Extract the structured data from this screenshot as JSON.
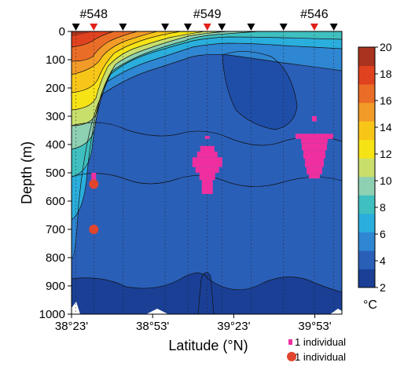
{
  "chart_data": {
    "type": "heatmap",
    "xlabel": "Latitude (°N)",
    "ylabel": "Depth (m)",
    "x_ticks": [
      "38°23'",
      "38°53'",
      "39°23'",
      "39°53'"
    ],
    "x_tick_values": [
      38.383,
      38.883,
      39.383,
      39.883
    ],
    "xlim": [
      38.383,
      40.05
    ],
    "y_ticks": [
      0,
      100,
      200,
      300,
      400,
      500,
      600,
      700,
      800,
      900,
      1000
    ],
    "ylim": [
      0,
      1000
    ],
    "station_labels": [
      {
        "name": "#548",
        "lat": 38.52
      },
      {
        "name": "#549",
        "lat": 39.22
      },
      {
        "name": "#546",
        "lat": 39.88
      }
    ],
    "station_markers": [
      {
        "lat": 38.41,
        "color": "#000000"
      },
      {
        "lat": 38.52,
        "color": "#e0201b"
      },
      {
        "lat": 38.7,
        "color": "#000000"
      },
      {
        "lat": 38.96,
        "color": "#000000"
      },
      {
        "lat": 39.1,
        "color": "#000000"
      },
      {
        "lat": 39.22,
        "color": "#e0201b"
      },
      {
        "lat": 39.31,
        "color": "#000000"
      },
      {
        "lat": 39.49,
        "color": "#000000"
      },
      {
        "lat": 39.69,
        "color": "#000000"
      },
      {
        "lat": 39.88,
        "color": "#e0201b"
      },
      {
        "lat": 40.0,
        "color": "#000000"
      }
    ],
    "colorbar": {
      "unit": "°C",
      "ticks": [
        2,
        4,
        6,
        8,
        10,
        12,
        14,
        16,
        18,
        20
      ],
      "colors": [
        "#1a3f95",
        "#2a5fb8",
        "#2f86d2",
        "#2aaedd",
        "#3fbfbf",
        "#8ed0b2",
        "#c9df6c",
        "#f6e316",
        "#f8c618",
        "#f29b28",
        "#ea6d27",
        "#e0421f",
        "#a9331e"
      ]
    },
    "legend": [
      {
        "label": "1 individual",
        "marker": "square",
        "color": "#ef2f9f"
      },
      {
        "label": "1 individual",
        "marker": "circle",
        "color": "#e0452e"
      }
    ],
    "individuals_squares": [
      {
        "lat": 38.52,
        "depth_top": 500,
        "depth_bottom": 545,
        "count": 1
      },
      {
        "lat": 39.22,
        "depth_top": 370,
        "depth_bottom": 575,
        "count": 28
      },
      {
        "lat": 39.88,
        "depth_top": 300,
        "depth_bottom": 520,
        "count": 40
      }
    ],
    "individuals_circles": [
      {
        "lat": 38.52,
        "depth": 540
      },
      {
        "lat": 38.52,
        "depth": 700
      }
    ]
  }
}
